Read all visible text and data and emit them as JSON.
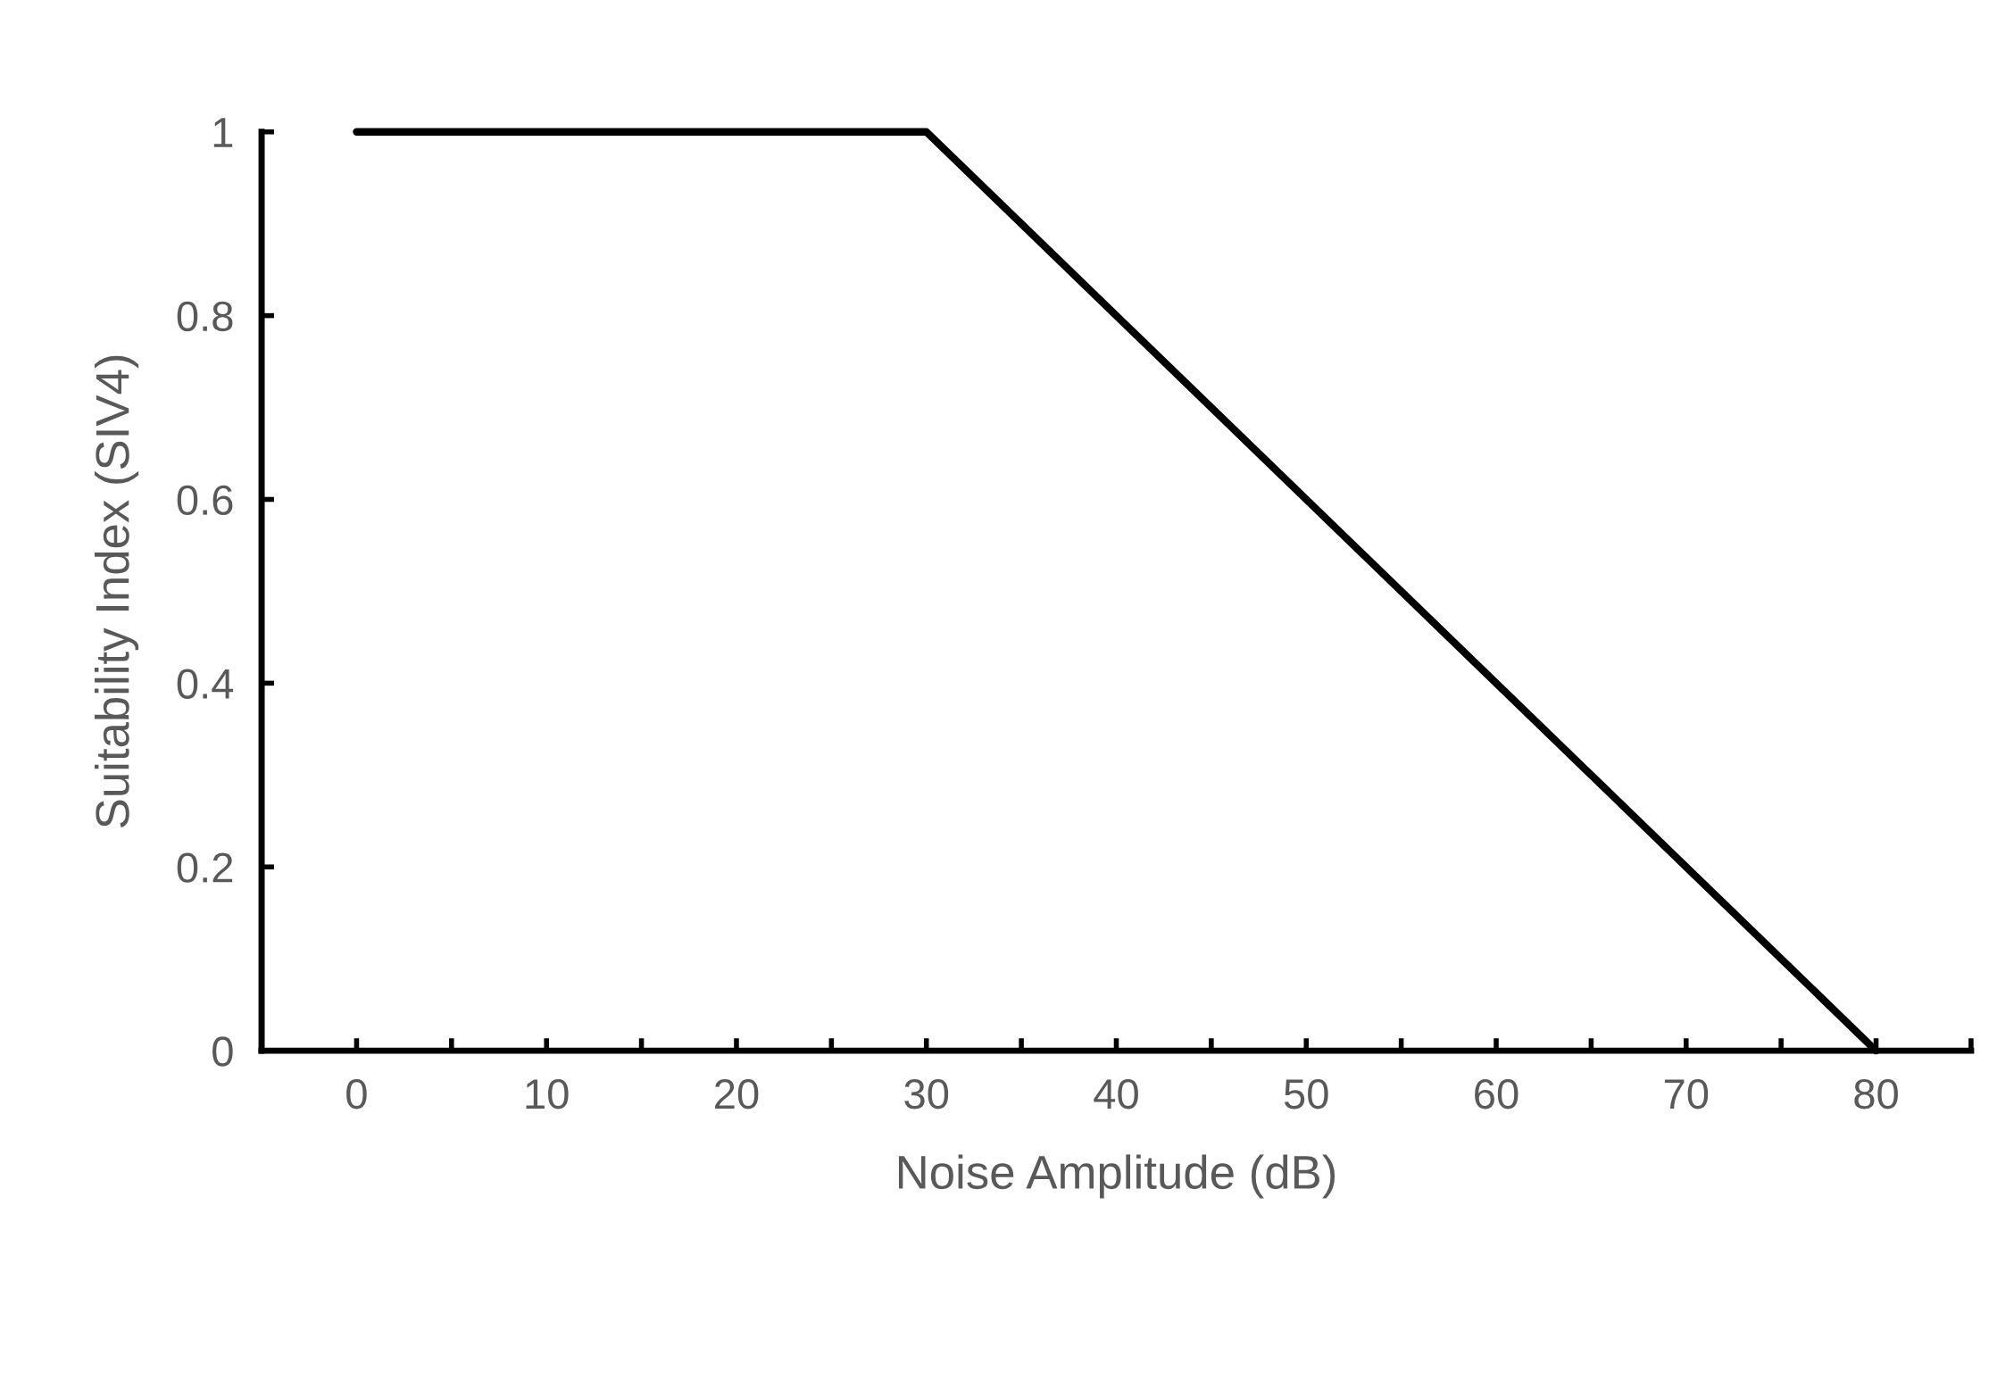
{
  "chart_data": {
    "type": "line",
    "xlabel": "Noise Amplitude (dB)",
    "ylabel": "Suitability Index (SIV4)",
    "x": [
      0,
      30,
      80
    ],
    "series": [
      {
        "color": "#000000",
        "values": [
          1,
          1,
          0
        ]
      }
    ],
    "xlim": [
      -5,
      85
    ],
    "ylim": [
      0,
      1
    ],
    "xticks": [
      0,
      {
        "value": 5,
        "label": null
      },
      10,
      {
        "value": 15,
        "label": null
      },
      20,
      {
        "value": 25,
        "label": null
      },
      30,
      {
        "value": 35,
        "label": null
      },
      40,
      {
        "value": 45,
        "label": null
      },
      50,
      {
        "value": 55,
        "label": null
      },
      60,
      {
        "value": 65,
        "label": null
      },
      70,
      {
        "value": 75,
        "label": null
      },
      80,
      {
        "value": 85,
        "label": null
      }
    ],
    "yticks": [
      0,
      0.2,
      0.4,
      0.6,
      0.8,
      1
    ],
    "grid": false,
    "legend": false,
    "marker": "none",
    "line_style": "solid"
  }
}
